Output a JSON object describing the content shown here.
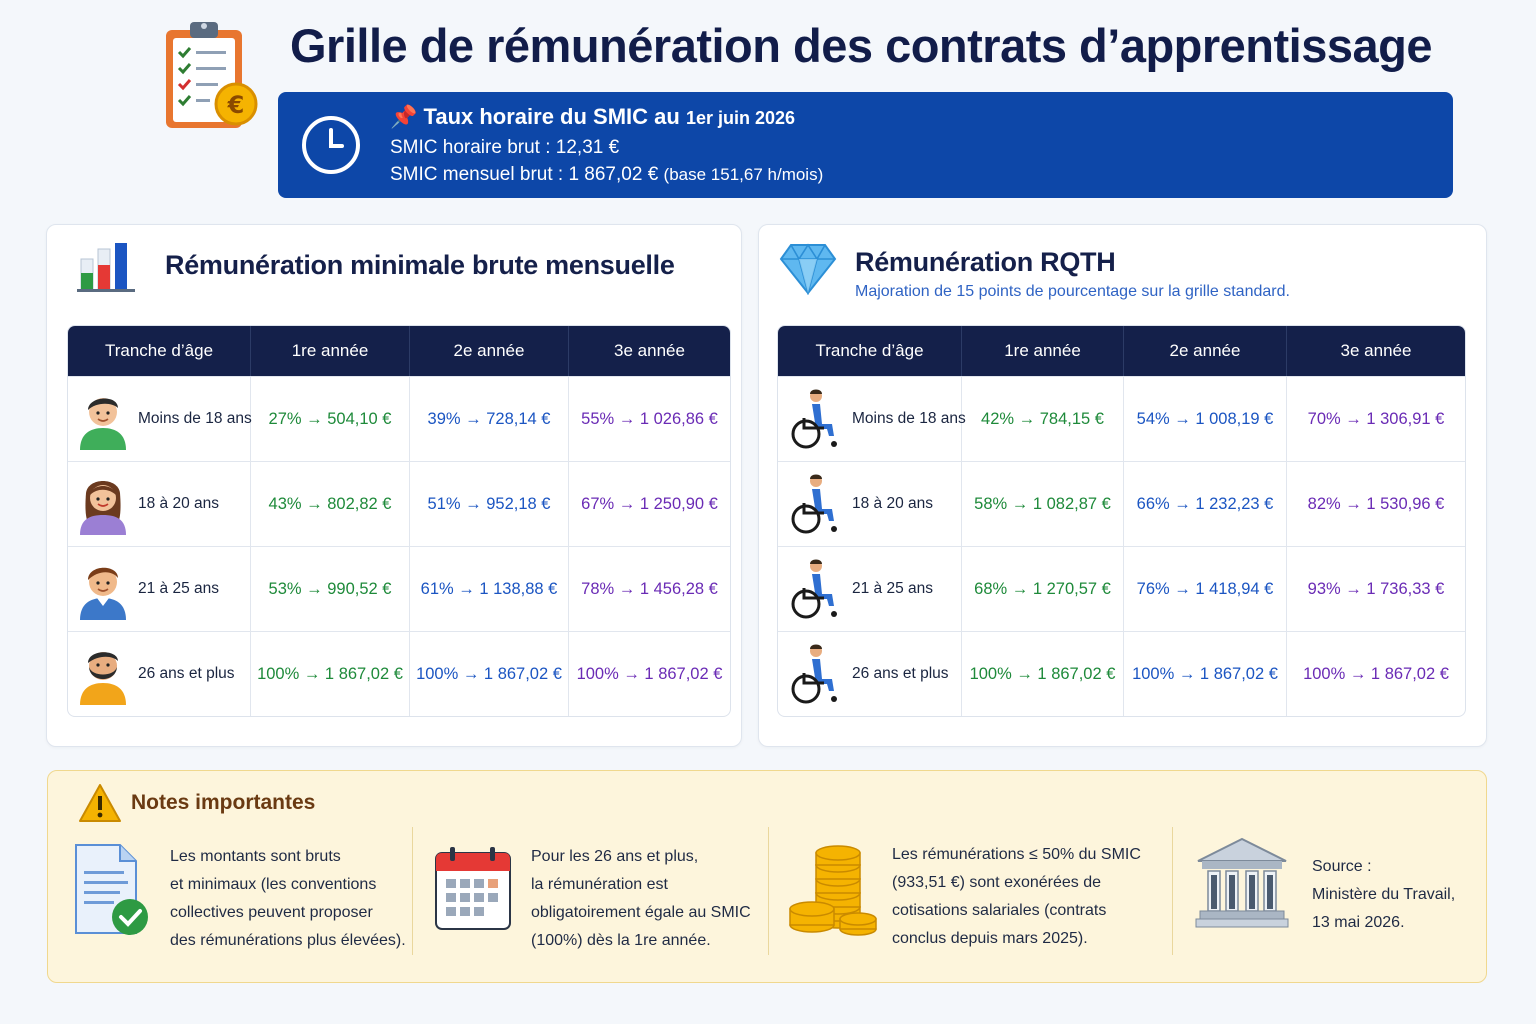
{
  "header": {
    "title": "Grille de rémunération des contrats d’apprentissage",
    "icon": "clipboard-euro-icon"
  },
  "smic": {
    "pin_icon": "pushpin-icon",
    "heading": "Taux horaire du SMIC au",
    "heading_date": "1er juin 2026",
    "hourly": "SMIC horaire brut : 12,31 €",
    "monthly": "SMIC mensuel brut : 1 867,02 €",
    "monthly_base": "(base 151,67 h/mois)"
  },
  "standard": {
    "title": "Rémunération minimale brute mensuelle",
    "icon": "bar-chart-icon",
    "headers": [
      "Tranche d’âge",
      "1re année",
      "2e année",
      "3e année"
    ],
    "rows": [
      {
        "age": "Moins de 18 ans",
        "y1": "27% → 504,10 €",
        "y2": "39% → 728,14 €",
        "y3": "55% → 1 026,86 €"
      },
      {
        "age": "18 à 20 ans",
        "y1": "43% → 802,82 €",
        "y2": "51% → 952,18 €",
        "y3": "67% → 1 250,90 €"
      },
      {
        "age": "21 à 25 ans",
        "y1": "53% → 990,52 €",
        "y2": "61% → 1 138,88 €",
        "y3": "78% → 1 456,28 €"
      },
      {
        "age": "26 ans et plus",
        "y1": "100% → 1 867,02 €",
        "y2": "100% → 1 867,02 €",
        "y3": "100% → 1 867,02 €"
      }
    ]
  },
  "rqth": {
    "title": "Rémunération RQTH",
    "subtitle": "Majoration de 15 points de pourcentage sur la grille standard.",
    "icon": "diamond-icon",
    "headers": [
      "Tranche d’âge",
      "1re année",
      "2e année",
      "3e année"
    ],
    "rows": [
      {
        "age": "Moins de 18 ans",
        "y1": "42% → 784,15 €",
        "y2": "54% → 1 008,19 €",
        "y3": "70% → 1 306,91 €"
      },
      {
        "age": "18 à 20 ans",
        "y1": "58% → 1 082,87 €",
        "y2": "66% → 1 232,23 €",
        "y3": "82% → 1 530,96 €"
      },
      {
        "age": "21 à 25 ans",
        "y1": "68% → 1 270,57 €",
        "y2": "76% → 1 418,94 €",
        "y3": "93% → 1 736,33 €"
      },
      {
        "age": "26 ans et plus",
        "y1": "100% → 1 867,02 €",
        "y2": "100% → 1 867,02 €",
        "y3": "100% → 1 867,02 €"
      }
    ]
  },
  "notes": {
    "title": "Notes importantes",
    "items": [
      {
        "icon": "document-check-icon",
        "lines": [
          "Les montants sont bruts",
          "et minimaux (les conventions",
          "collectives peuvent proposer",
          "des rémunérations plus élevées)."
        ]
      },
      {
        "icon": "calendar-icon",
        "lines": [
          "Pour les 26 ans et plus,",
          "la rémunération est",
          "obligatoirement égale au SMIC",
          "(100%) dès la 1re année."
        ]
      },
      {
        "icon": "coins-icon",
        "lines": [
          "Les rémunérations ≤ 50% du SMIC",
          "(933,51 €) sont exonérées de",
          "cotisations salariales (contrats",
          "conclus depuis mars 2025)."
        ]
      },
      {
        "icon": "institution-icon",
        "lines": [
          "Source :",
          "Ministère du Travail,",
          "13 mai 2026."
        ]
      }
    ]
  }
}
